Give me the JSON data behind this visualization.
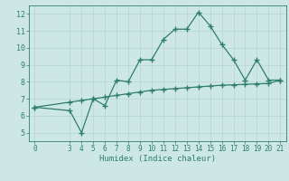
{
  "line1_x": [
    0,
    3,
    4,
    5,
    6,
    7,
    8,
    9,
    10,
    11,
    12,
    13,
    14,
    15,
    16,
    17,
    18,
    19,
    20,
    21
  ],
  "line1_y": [
    6.5,
    6.3,
    5.0,
    7.0,
    6.6,
    8.1,
    8.0,
    9.3,
    9.3,
    10.5,
    11.1,
    11.1,
    12.1,
    11.3,
    10.2,
    9.3,
    8.1,
    9.3,
    8.1,
    8.1
  ],
  "line2_x": [
    0,
    3,
    4,
    5,
    6,
    7,
    8,
    9,
    10,
    11,
    12,
    13,
    14,
    15,
    16,
    17,
    18,
    19,
    20,
    21
  ],
  "line2_y": [
    6.5,
    6.8,
    6.9,
    7.0,
    7.1,
    7.2,
    7.3,
    7.4,
    7.5,
    7.55,
    7.6,
    7.65,
    7.7,
    7.75,
    7.8,
    7.82,
    7.85,
    7.88,
    7.9,
    8.1
  ],
  "color": "#2e7d6e",
  "bg_color": "#cde8e4",
  "grid_color_major": "#b8d4d0",
  "grid_color_minor": "#d4e8e4",
  "xlabel": "Humidex (Indice chaleur)",
  "xlim": [
    -0.5,
    21.5
  ],
  "ylim": [
    4.5,
    12.5
  ],
  "xticks": [
    0,
    3,
    4,
    5,
    6,
    7,
    8,
    9,
    10,
    11,
    12,
    13,
    14,
    15,
    16,
    17,
    18,
    19,
    20,
    21
  ],
  "yticks": [
    5,
    6,
    7,
    8,
    9,
    10,
    11,
    12
  ],
  "marker": "+",
  "linewidth": 0.9,
  "markersize": 4,
  "xlabel_fontsize": 6.5,
  "tick_fontsize": 5.5
}
